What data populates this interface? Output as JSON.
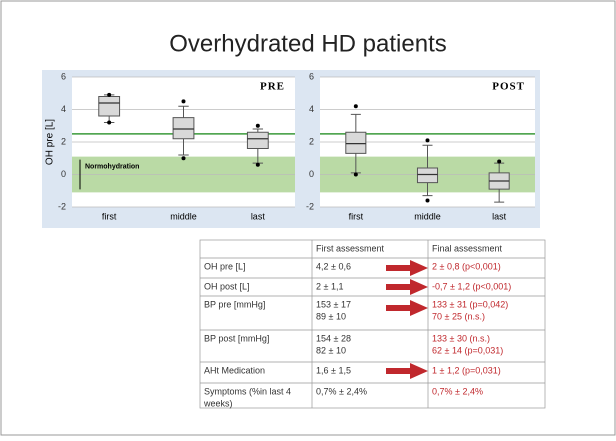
{
  "title": "Overhydrated HD patients",
  "chart_data": [
    {
      "type": "box",
      "title": "PRE",
      "y_label": "OH pre [L]",
      "annotation": "Normohydration",
      "categories": [
        "first",
        "middle",
        "last"
      ],
      "boxes": [
        {
          "low": 3.2,
          "q1": 3.6,
          "median": 4.4,
          "q3": 4.8,
          "high": 4.9
        },
        {
          "low": 1.2,
          "q1": 2.2,
          "median": 2.8,
          "q3": 3.5,
          "high": 4.2
        },
        {
          "low": 0.7,
          "q1": 1.6,
          "median": 2.2,
          "q3": 2.6,
          "high": 2.8
        }
      ],
      "outliers": [
        [
          3.2,
          4.9
        ],
        [
          1.0,
          4.5
        ],
        [
          0.6,
          3.0
        ]
      ],
      "reference_line": 2.5,
      "normal_range": [
        -1.1,
        1.1
      ],
      "ylim": [
        -2,
        6
      ],
      "yticks": [
        -2,
        0,
        2,
        4,
        6
      ],
      "grid": true
    },
    {
      "type": "box",
      "title": "POST",
      "categories": [
        "first",
        "middle",
        "last"
      ],
      "boxes": [
        {
          "low": 0.1,
          "q1": 1.3,
          "median": 1.9,
          "q3": 2.6,
          "high": 3.7
        },
        {
          "low": -1.3,
          "q1": -0.5,
          "median": 0.0,
          "q3": 0.4,
          "high": 1.8
        },
        {
          "low": -1.7,
          "q1": -0.9,
          "median": -0.4,
          "q3": 0.1,
          "high": 0.7
        }
      ],
      "outliers": [
        [
          0.0,
          4.2
        ],
        [
          -1.6,
          2.1
        ],
        [
          0.8
        ]
      ],
      "reference_line": 2.5,
      "normal_range": [
        -1.1,
        1.1
      ],
      "ylim": [
        -2,
        6
      ],
      "yticks": [
        -2,
        0,
        2,
        4,
        6
      ],
      "grid": true
    }
  ],
  "table": {
    "header": [
      "",
      "First assessment",
      "Final assessment"
    ],
    "rows": [
      [
        [
          "OH pre [L]"
        ],
        [
          "4,2 ± 0,6"
        ],
        [
          "2 ± 0,8 (p<0,001)"
        ]
      ],
      [
        [
          "OH post [L]"
        ],
        [
          "2 ± 1,1"
        ],
        [
          "-0,7 ± 1,2  (p<0,001)"
        ]
      ],
      [
        [
          "BP pre [mmHg]"
        ],
        [
          "153 ± 17",
          "89 ± 10"
        ],
        [
          "133 ± 31 (p=0,042)",
          "70 ± 25 (n.s.)"
        ]
      ],
      [
        [
          "BP post [mmHg]"
        ],
        [
          "154 ± 28",
          "82 ± 10"
        ],
        [
          "133 ± 30 (n.s.)",
          "62 ± 14 (p=0,031)"
        ]
      ],
      [
        [
          "AHt Medication"
        ],
        [
          "1,6 ± 1,5"
        ],
        [
          "1 ± 1,2 (p=0,031)"
        ]
      ],
      [
        [
          "Symptoms (%in last 4",
          "weeks)"
        ],
        [
          "0,7% ± 2,4%"
        ],
        [
          "0,7% ± 2,4%"
        ]
      ]
    ]
  }
}
